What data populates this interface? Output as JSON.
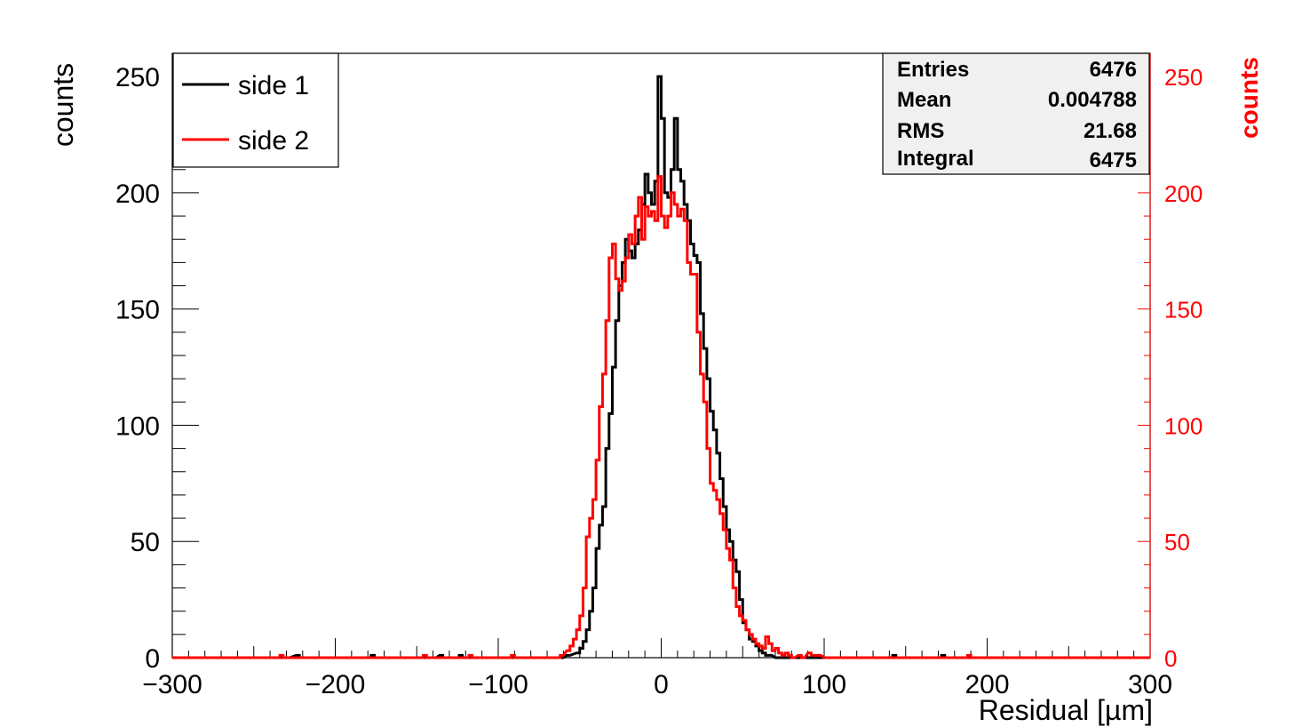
{
  "chart_data": {
    "type": "histogram",
    "title": "",
    "xlabel": "Residual [µm]",
    "ylabel": "counts",
    "ylabel_right": "counts",
    "xlim": [
      -300,
      300
    ],
    "ylim": [
      0,
      260
    ],
    "xticks": [
      -300,
      -200,
      -100,
      0,
      100,
      200,
      300
    ],
    "xtick_labels": [
      "−300",
      "−200",
      "−100",
      "0",
      "100",
      "200",
      "300"
    ],
    "yticks": [
      0,
      50,
      100,
      150,
      200,
      250
    ],
    "ytick_labels": [
      "0",
      "50",
      "100",
      "150",
      "200",
      "250"
    ],
    "yticks_right": [
      0,
      50,
      100,
      150,
      200,
      250
    ],
    "ytick_labels_right": [
      "0",
      "50",
      "100",
      "150",
      "200",
      "250"
    ],
    "grid": false,
    "legend_position": "top-left",
    "bin_width": 2,
    "colors": {
      "side1": "#000000",
      "side2": "#ff0000",
      "right_axis": "#ff0000"
    },
    "series": [
      {
        "name": "side 1",
        "color": "#000000",
        "points": [
          [
            -230,
            0
          ],
          [
            -224,
            1
          ],
          [
            -222,
            0
          ],
          [
            -180,
            0
          ],
          [
            -178,
            1
          ],
          [
            -176,
            0
          ],
          [
            -140,
            0
          ],
          [
            -136,
            1
          ],
          [
            -134,
            0
          ],
          [
            -126,
            0
          ],
          [
            -124,
            1
          ],
          [
            -122,
            0
          ],
          [
            -62,
            0
          ],
          [
            -58,
            1
          ],
          [
            -52,
            2
          ],
          [
            -50,
            4
          ],
          [
            -48,
            7
          ],
          [
            -46,
            12
          ],
          [
            -44,
            20
          ],
          [
            -42,
            30
          ],
          [
            -40,
            47
          ],
          [
            -38,
            57
          ],
          [
            -36,
            65
          ],
          [
            -34,
            90
          ],
          [
            -32,
            105
          ],
          [
            -30,
            125
          ],
          [
            -28,
            145
          ],
          [
            -26,
            160
          ],
          [
            -24,
            170
          ],
          [
            -22,
            180
          ],
          [
            -20,
            175
          ],
          [
            -18,
            172
          ],
          [
            -16,
            178
          ],
          [
            -14,
            184
          ],
          [
            -12,
            195
          ],
          [
            -10,
            208
          ],
          [
            -8,
            200
          ],
          [
            -6,
            195
          ],
          [
            -4,
            205
          ],
          [
            -2,
            250
          ],
          [
            0,
            232
          ],
          [
            2,
            200
          ],
          [
            4,
            198
          ],
          [
            6,
            210
          ],
          [
            8,
            232
          ],
          [
            10,
            210
          ],
          [
            12,
            205
          ],
          [
            14,
            195
          ],
          [
            16,
            188
          ],
          [
            18,
            178
          ],
          [
            20,
            173
          ],
          [
            22,
            170
          ],
          [
            24,
            148
          ],
          [
            26,
            133
          ],
          [
            28,
            120
          ],
          [
            30,
            106
          ],
          [
            32,
            98
          ],
          [
            34,
            88
          ],
          [
            36,
            77
          ],
          [
            38,
            65
          ],
          [
            40,
            55
          ],
          [
            42,
            50
          ],
          [
            44,
            42
          ],
          [
            46,
            37
          ],
          [
            48,
            25
          ],
          [
            50,
            15
          ],
          [
            52,
            12
          ],
          [
            54,
            8
          ],
          [
            56,
            7
          ],
          [
            58,
            5
          ],
          [
            60,
            3
          ],
          [
            62,
            2
          ],
          [
            64,
            1
          ],
          [
            66,
            1
          ],
          [
            70,
            0
          ],
          [
            140,
            0
          ],
          [
            142,
            1
          ],
          [
            144,
            0
          ],
          [
            170,
            0
          ],
          [
            172,
            1
          ],
          [
            174,
            0
          ]
        ]
      },
      {
        "name": "side 2",
        "color": "#ff0000",
        "points": [
          [
            -236,
            0
          ],
          [
            -234,
            1
          ],
          [
            -232,
            0
          ],
          [
            -148,
            0
          ],
          [
            -146,
            1
          ],
          [
            -144,
            0
          ],
          [
            -120,
            0
          ],
          [
            -118,
            1
          ],
          [
            -116,
            0
          ],
          [
            -94,
            0
          ],
          [
            -92,
            1
          ],
          [
            -90,
            0
          ],
          [
            -64,
            0
          ],
          [
            -62,
            1
          ],
          [
            -58,
            3
          ],
          [
            -56,
            5
          ],
          [
            -54,
            8
          ],
          [
            -52,
            12
          ],
          [
            -50,
            18
          ],
          [
            -48,
            30
          ],
          [
            -46,
            52
          ],
          [
            -44,
            60
          ],
          [
            -42,
            68
          ],
          [
            -40,
            85
          ],
          [
            -38,
            108
          ],
          [
            -36,
            122
          ],
          [
            -34,
            145
          ],
          [
            -32,
            172
          ],
          [
            -30,
            178
          ],
          [
            -28,
            163
          ],
          [
            -26,
            158
          ],
          [
            -24,
            162
          ],
          [
            -22,
            172
          ],
          [
            -20,
            182
          ],
          [
            -18,
            178
          ],
          [
            -16,
            190
          ],
          [
            -14,
            198
          ],
          [
            -12,
            180
          ],
          [
            -10,
            194
          ],
          [
            -8,
            190
          ],
          [
            -6,
            192
          ],
          [
            -4,
            188
          ],
          [
            -2,
            207
          ],
          [
            0,
            190
          ],
          [
            2,
            185
          ],
          [
            4,
            190
          ],
          [
            6,
            200
          ],
          [
            8,
            195
          ],
          [
            10,
            190
          ],
          [
            12,
            193
          ],
          [
            14,
            188
          ],
          [
            16,
            170
          ],
          [
            18,
            165
          ],
          [
            20,
            165
          ],
          [
            22,
            140
          ],
          [
            24,
            122
          ],
          [
            26,
            110
          ],
          [
            28,
            90
          ],
          [
            30,
            75
          ],
          [
            32,
            72
          ],
          [
            34,
            68
          ],
          [
            36,
            62
          ],
          [
            38,
            55
          ],
          [
            40,
            47
          ],
          [
            42,
            42
          ],
          [
            44,
            30
          ],
          [
            46,
            22
          ],
          [
            48,
            18
          ],
          [
            50,
            16
          ],
          [
            52,
            12
          ],
          [
            54,
            10
          ],
          [
            56,
            8
          ],
          [
            58,
            6
          ],
          [
            60,
            5
          ],
          [
            62,
            4
          ],
          [
            64,
            9
          ],
          [
            66,
            6
          ],
          [
            68,
            3
          ],
          [
            70,
            4
          ],
          [
            72,
            2
          ],
          [
            74,
            1
          ],
          [
            76,
            2
          ],
          [
            78,
            1
          ],
          [
            80,
            0
          ],
          [
            84,
            1
          ],
          [
            86,
            0
          ],
          [
            90,
            2
          ],
          [
            92,
            1
          ],
          [
            96,
            1
          ],
          [
            100,
            0
          ],
          [
            186,
            0
          ],
          [
            188,
            1
          ],
          [
            190,
            0
          ]
        ]
      }
    ],
    "legend": [
      {
        "label": "side 1",
        "color": "#000000"
      },
      {
        "label": "side 2",
        "color": "#ff0000"
      }
    ],
    "stats_box": {
      "rows": [
        {
          "label": "Entries",
          "value": "6476"
        },
        {
          "label": "Mean",
          "value": "0.004788"
        },
        {
          "label": "RMS",
          "value": "21.68"
        },
        {
          "label": "Integral",
          "value": "6475"
        }
      ]
    }
  }
}
